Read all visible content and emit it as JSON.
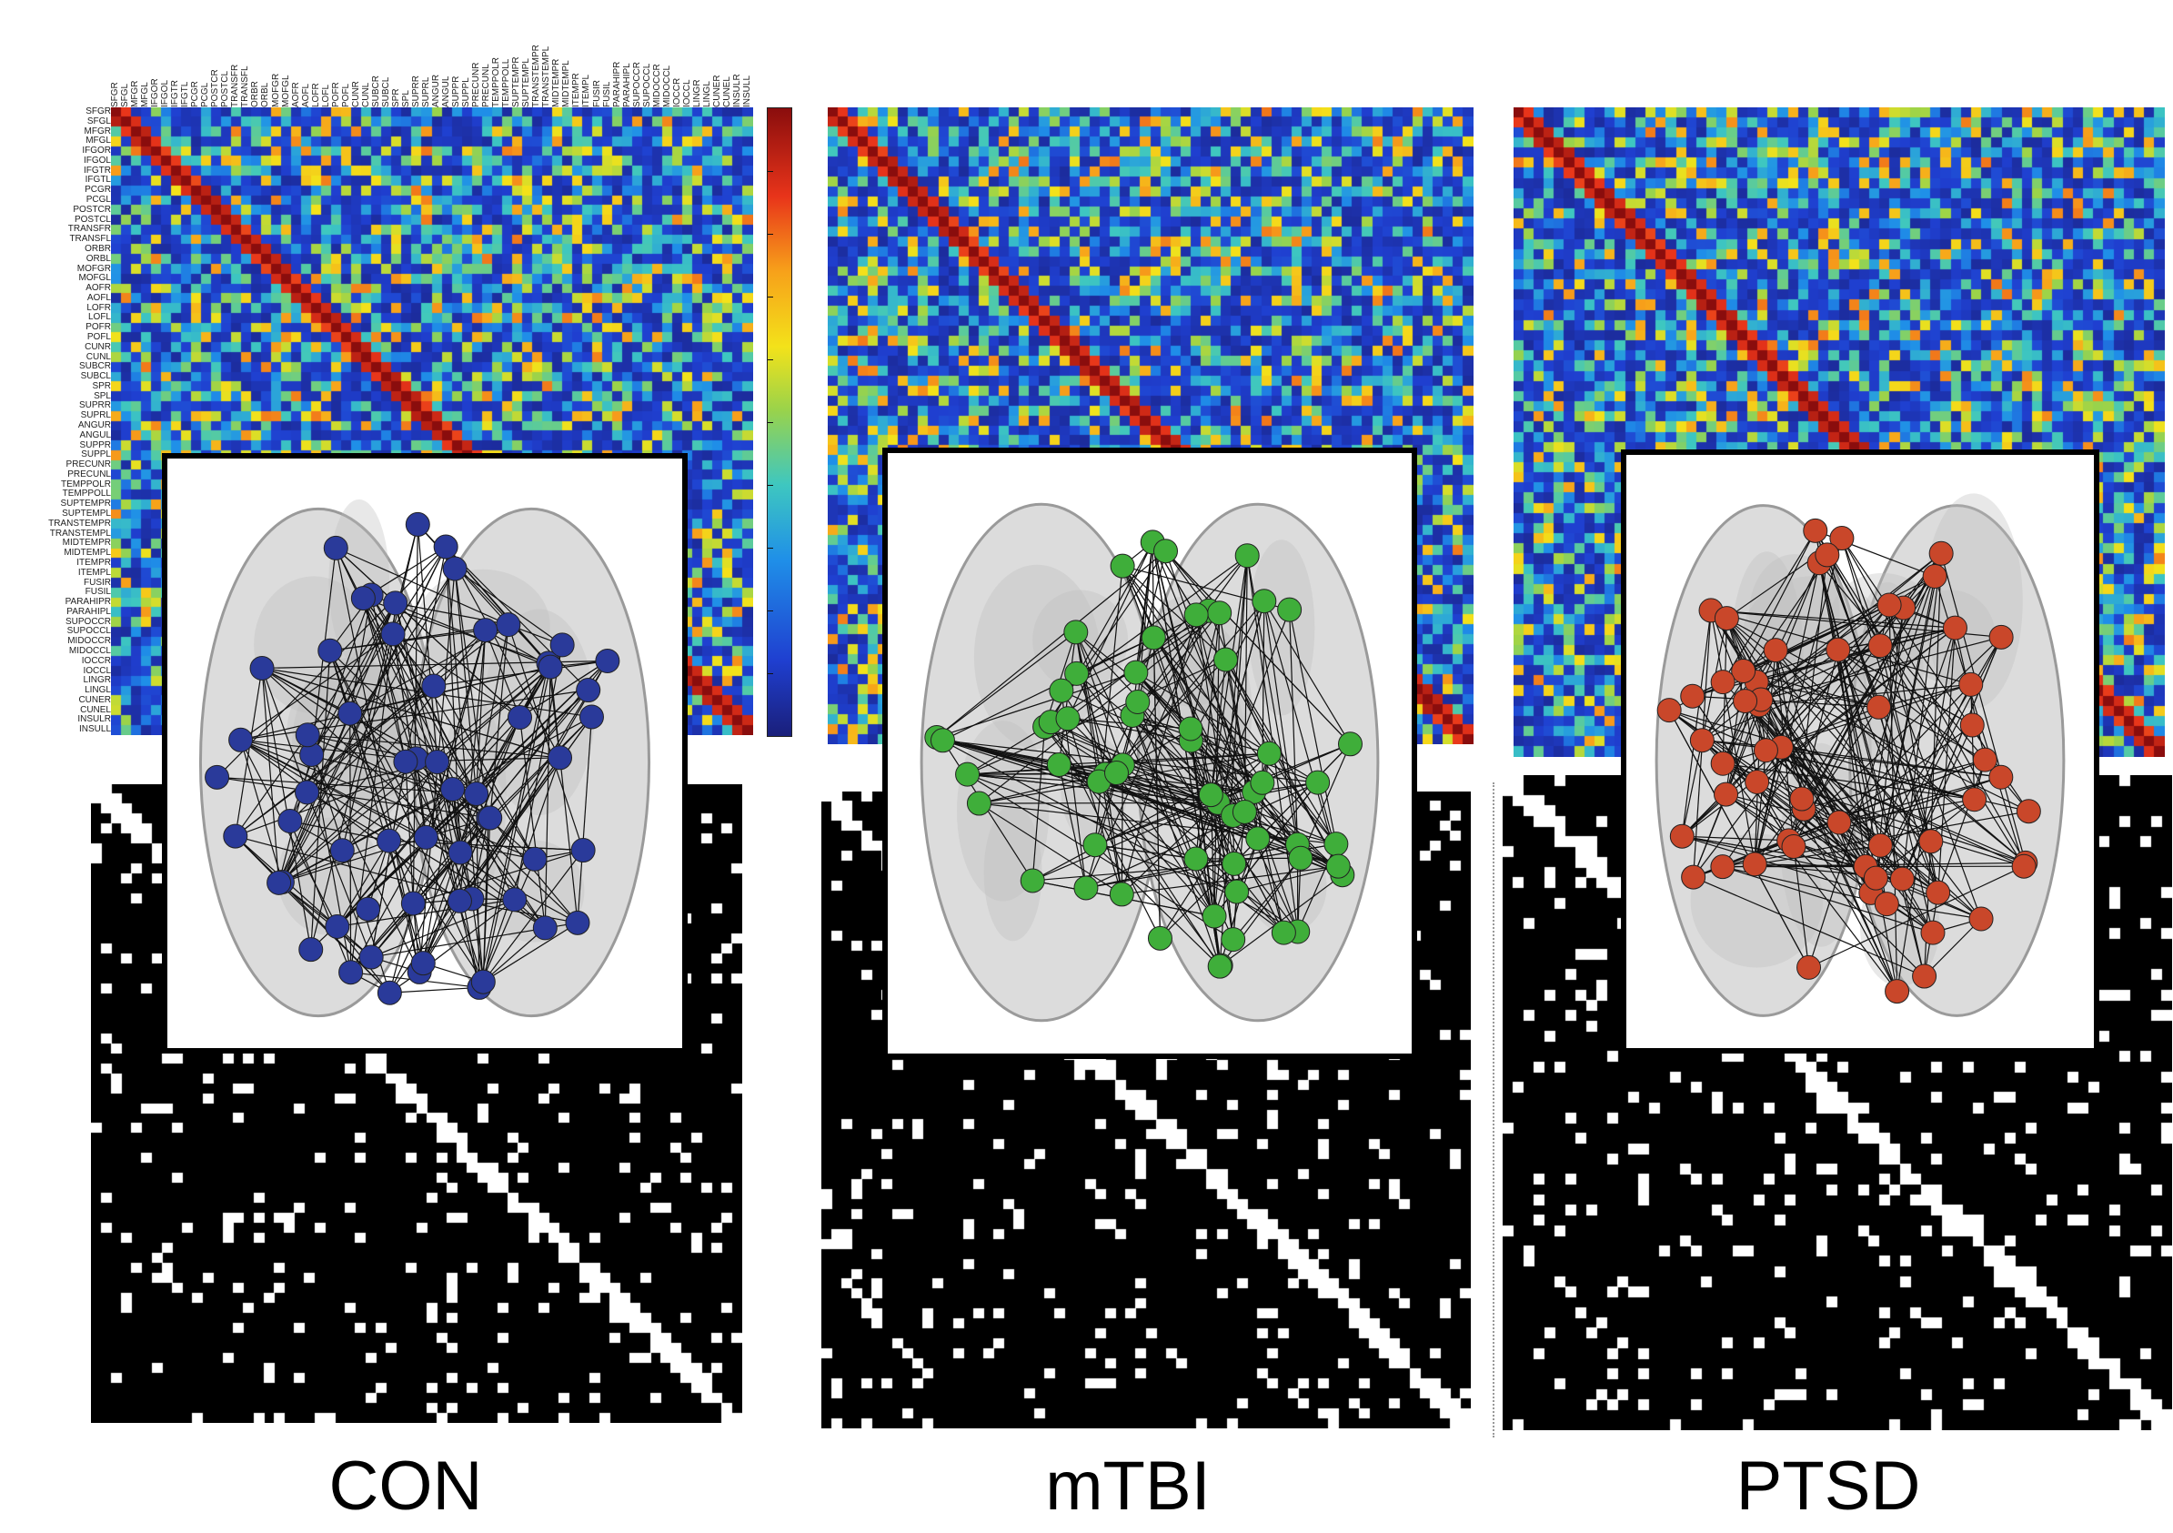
{
  "groups": [
    {
      "id": "con",
      "label": "CON",
      "node_color": "#2a3a9a"
    },
    {
      "id": "mtbi",
      "label": "mTBI",
      "node_color": "#3fae3a"
    },
    {
      "id": "ptsd",
      "label": "PTSD",
      "node_color": "#c9472a"
    }
  ],
  "region_labels": [
    "SFGR",
    "SFGL",
    "MFGR",
    "MFGL",
    "IFGOR",
    "IFGOL",
    "IFGTR",
    "IFGTL",
    "PCGR",
    "PCGL",
    "POSTCR",
    "POSTCL",
    "TRANSFR",
    "TRANSFL",
    "ORBR",
    "ORBL",
    "MOFGR",
    "MOFGL",
    "AOFR",
    "AOFL",
    "LOFR",
    "LOFL",
    "POFR",
    "POFL",
    "CUNR",
    "CUNL",
    "SUBCR",
    "SUBCL",
    "SPR",
    "SPL",
    "SUPRR",
    "SUPRL",
    "ANGUR",
    "ANGUL",
    "SUPPR",
    "SUPPL",
    "PRECUNR",
    "PRECUNL",
    "TEMPPOLR",
    "TEMPPOLL",
    "SUPTEMPR",
    "SUPTEMPL",
    "TRANSTEMPR",
    "TRANSTEMPL",
    "MIDTEMPR",
    "MIDTEMPL",
    "ITEMPR",
    "ITEMPL",
    "FUSIR",
    "FUSIL",
    "PARAHIPR",
    "PARAHIPL",
    "SUPOCCR",
    "SUPOCCL",
    "MIDOCCR",
    "MIDOCCL",
    "IOCCR",
    "IOCCL",
    "LINGR",
    "LINGL",
    "CUNER",
    "CUNEL",
    "INSULR",
    "INSULL"
  ],
  "colorbar_colors": [
    "#1a1f7a",
    "#1f3fd0",
    "#1f8fe8",
    "#3ec7c0",
    "#9ad34a",
    "#f3e21a",
    "#f7a11a",
    "#e8341a",
    "#8a0d0d"
  ]
}
